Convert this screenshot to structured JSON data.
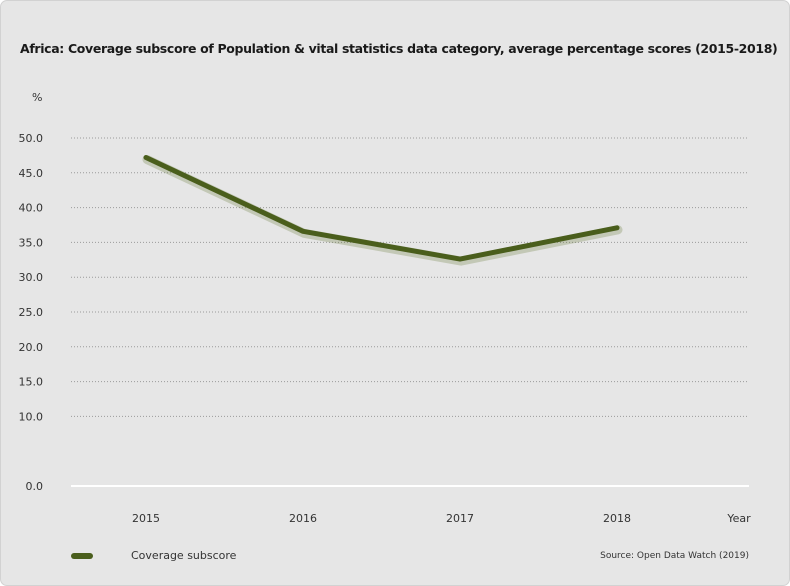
{
  "chart_data": {
    "type": "line",
    "title": "Africa: Coverage subscore of Population & vital statistics data category, average percentage scores (2015-2018)",
    "y_unit": "%",
    "xlabel": "Year",
    "x": [
      "2015",
      "2016",
      "2017",
      "2018"
    ],
    "ylim": [
      0,
      50
    ],
    "yticks": [
      "0.0",
      "10.0",
      "15.0",
      "20.0",
      "25.0",
      "30.0",
      "35.0",
      "40.0",
      "45.0",
      "50.0"
    ],
    "ytick_values": [
      0,
      10,
      15,
      20,
      25,
      30,
      35,
      40,
      45,
      50
    ],
    "series": [
      {
        "name": "Coverage subscore",
        "values": [
          47.2,
          36.6,
          32.6,
          37.1
        ],
        "color": "#4a5e1c"
      }
    ],
    "grid": true,
    "legend_position": "bottom-left",
    "source": "Source: Open Data Watch (2019)"
  }
}
